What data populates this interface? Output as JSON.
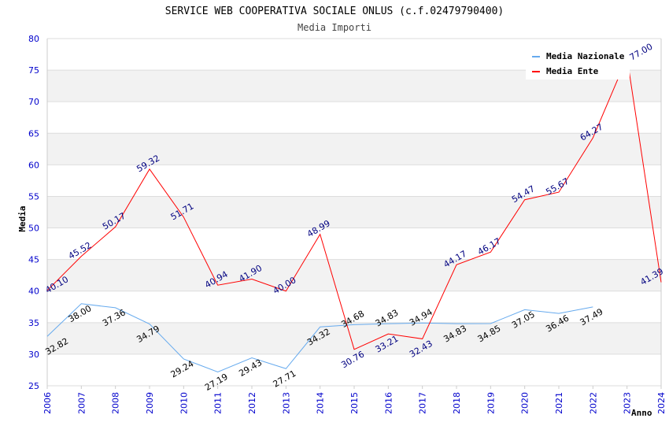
{
  "chart_data": {
    "type": "line",
    "title": "SERVICE WEB COOPERATIVA SOCIALE ONLUS (c.f.02479790400)",
    "subtitle": "Media Importi",
    "xlabel": "Anno",
    "ylabel": "Media",
    "ylim": [
      25,
      80
    ],
    "yticks": [
      25,
      30,
      35,
      40,
      45,
      50,
      55,
      60,
      65,
      70,
      75,
      80
    ],
    "x": [
      2006,
      2007,
      2008,
      2009,
      2010,
      2011,
      2012,
      2013,
      2014,
      2015,
      2016,
      2017,
      2018,
      2019,
      2020,
      2021,
      2022,
      2023,
      2024
    ],
    "legend_position": "top-right",
    "series": [
      {
        "name": "Media Nazionale",
        "color": "#66aaee",
        "label_color": "#000000",
        "values": [
          32.82,
          38.0,
          37.36,
          34.79,
          29.24,
          27.19,
          29.43,
          27.71,
          34.32,
          34.68,
          34.83,
          34.94,
          34.83,
          34.85,
          37.05,
          36.46,
          37.49,
          null,
          null
        ]
      },
      {
        "name": "Media Ente",
        "color": "#ff0000",
        "label_color": "#000080",
        "values": [
          40.1,
          45.52,
          50.17,
          59.32,
          51.71,
          40.94,
          41.9,
          40.0,
          48.99,
          30.76,
          33.21,
          32.43,
          44.17,
          46.17,
          54.47,
          55.67,
          64.27,
          77.0,
          41.39
        ]
      }
    ]
  }
}
